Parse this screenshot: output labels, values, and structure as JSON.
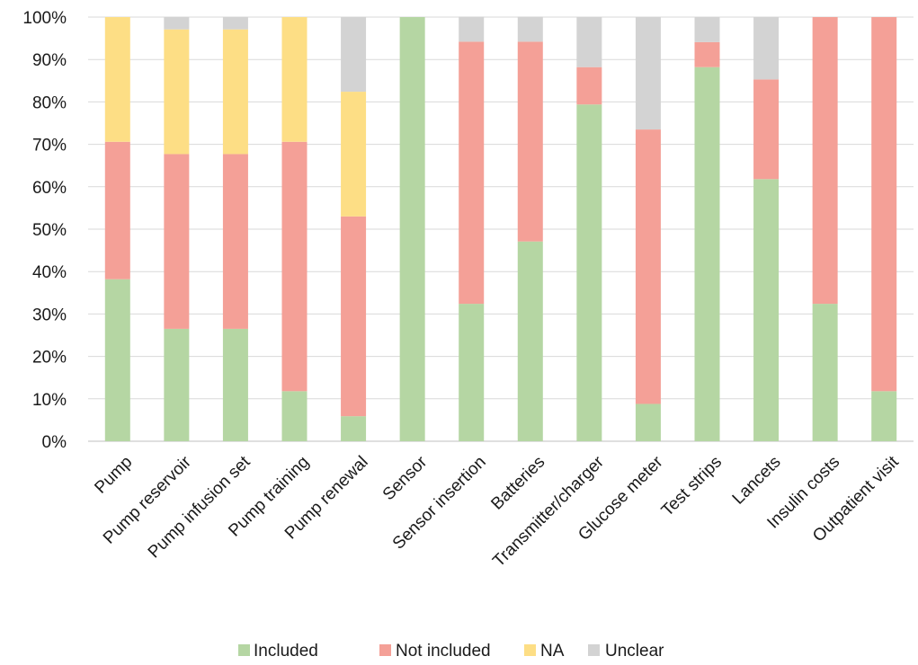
{
  "chart_data": {
    "type": "bar",
    "stacked": true,
    "percent_stacked": true,
    "title": "",
    "xlabel": "",
    "ylabel": "",
    "ylim": [
      0,
      100
    ],
    "yticks": [
      "0%",
      "10%",
      "20%",
      "30%",
      "40%",
      "50%",
      "60%",
      "70%",
      "80%",
      "90%",
      "100%"
    ],
    "grid": true,
    "legend_position": "bottom",
    "categories": [
      "Pump",
      "Pump reservoir",
      "Pump infusion set",
      "Pump training",
      "Pump renewal",
      "Sensor",
      "Sensor insertion",
      "Batteries",
      "Transmitter/charger",
      "Glucose meter",
      "Test strips",
      "Lancets",
      "Insulin costs",
      "Outpatient visit"
    ],
    "series": [
      {
        "name": "Included",
        "color": "#b5d6a3",
        "values": [
          38.2,
          26.5,
          26.5,
          11.8,
          5.9,
          100,
          32.4,
          47.1,
          79.4,
          8.8,
          88.2,
          61.8,
          32.4,
          11.8
        ]
      },
      {
        "name": "Not included",
        "color": "#f4a097",
        "values": [
          32.4,
          41.2,
          41.2,
          58.8,
          47.1,
          0,
          61.8,
          47.1,
          8.8,
          64.7,
          5.9,
          23.5,
          67.6,
          88.2
        ]
      },
      {
        "name": "NA",
        "color": "#fdde85",
        "values": [
          29.4,
          29.4,
          29.4,
          29.4,
          29.4,
          0,
          0,
          0,
          0,
          0,
          0,
          0,
          0,
          0
        ]
      },
      {
        "name": "Unclear",
        "color": "#d3d3d3",
        "values": [
          0,
          2.9,
          2.9,
          0,
          17.6,
          0,
          5.9,
          5.9,
          11.8,
          26.5,
          5.9,
          14.7,
          0,
          0
        ]
      }
    ]
  }
}
